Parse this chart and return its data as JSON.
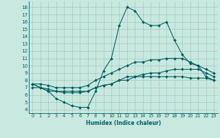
{
  "title": "",
  "xlabel": "Humidex (Indice chaleur)",
  "bg_color": "#c8e8e0",
  "grid_color": "#a0c8c0",
  "line_color": "#006060",
  "xlim": [
    -0.5,
    23.5
  ],
  "ylim": [
    3.5,
    18.8
  ],
  "yticks": [
    4,
    5,
    6,
    7,
    8,
    9,
    10,
    11,
    12,
    13,
    14,
    15,
    16,
    17,
    18
  ],
  "xticks": [
    0,
    1,
    2,
    3,
    4,
    5,
    6,
    7,
    8,
    9,
    10,
    11,
    12,
    13,
    14,
    15,
    16,
    17,
    18,
    19,
    20,
    21,
    22,
    23
  ],
  "series": [
    [
      7.0,
      7.0,
      6.5,
      5.5,
      5.0,
      4.5,
      4.3,
      4.3,
      6.5,
      9.3,
      11.0,
      15.5,
      18.0,
      17.5,
      16.0,
      15.5,
      15.5,
      16.0,
      13.5,
      11.5,
      10.3,
      10.0,
      8.5,
      8.0
    ],
    [
      7.5,
      7.5,
      7.3,
      7.0,
      7.0,
      7.0,
      7.0,
      7.3,
      8.0,
      8.5,
      9.0,
      9.5,
      10.0,
      10.5,
      10.5,
      10.8,
      10.8,
      11.0,
      11.0,
      11.0,
      10.5,
      10.0,
      9.5,
      9.0
    ],
    [
      7.5,
      7.0,
      6.8,
      6.5,
      6.5,
      6.5,
      6.5,
      6.5,
      7.0,
      7.3,
      7.5,
      8.0,
      8.5,
      8.5,
      8.8,
      9.0,
      9.0,
      9.3,
      9.5,
      9.5,
      9.5,
      9.5,
      9.0,
      8.5
    ],
    [
      7.5,
      7.0,
      6.5,
      6.5,
      6.3,
      6.3,
      6.3,
      6.5,
      7.0,
      7.3,
      7.5,
      8.0,
      8.0,
      8.5,
      8.5,
      8.5,
      8.5,
      8.5,
      8.5,
      8.5,
      8.3,
      8.3,
      8.3,
      8.0
    ]
  ],
  "xlabel_fontsize": 5.5,
  "tick_fontsize": 4.8,
  "ytick_fontsize": 5.2,
  "linewidth": 0.8,
  "markersize": 2.0
}
